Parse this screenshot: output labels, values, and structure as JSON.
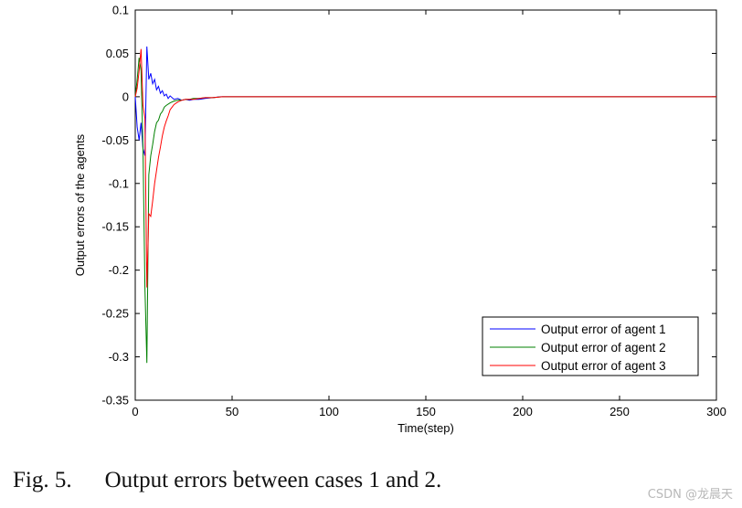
{
  "chart_data": {
    "type": "line",
    "title": "",
    "xlabel": "Time(step)",
    "ylabel": "Output errors of the agents",
    "xlim": [
      0,
      300
    ],
    "ylim": [
      -0.35,
      0.1
    ],
    "xticks": [
      0,
      50,
      100,
      150,
      200,
      250,
      300
    ],
    "yticks": [
      0.1,
      0.05,
      0,
      -0.05,
      -0.1,
      -0.15,
      -0.2,
      -0.25,
      -0.3,
      -0.35
    ],
    "xtick_labels": [
      "0",
      "50",
      "100",
      "150",
      "200",
      "250",
      "300"
    ],
    "ytick_labels": [
      "0.1",
      "0.05",
      "0",
      "-0.05",
      "-0.1",
      "-0.15",
      "-0.2",
      "-0.25",
      "-0.3",
      "-0.35"
    ],
    "grid": false,
    "legend_position": "bottom-right",
    "series": [
      {
        "name": "Output error of agent 1",
        "color": "#0000ff",
        "x": [
          0,
          1,
          2,
          3,
          4,
          5,
          6,
          7,
          8,
          9,
          10,
          11,
          12,
          13,
          14,
          15,
          16,
          17,
          18,
          20,
          22,
          24,
          26,
          28,
          30,
          33,
          36,
          40,
          44,
          47,
          50,
          300
        ],
        "y": [
          0,
          -0.035,
          -0.05,
          -0.03,
          -0.06,
          -0.068,
          0.058,
          0.02,
          0.027,
          0.015,
          0.02,
          0.008,
          0.012,
          0.004,
          0.007,
          0.001,
          0.003,
          -0.002,
          0.001,
          -0.003,
          -0.002,
          -0.004,
          -0.003,
          -0.004,
          -0.003,
          -0.003,
          -0.002,
          -0.001,
          0,
          0,
          0,
          0
        ]
      },
      {
        "name": "Output error of agent 2",
        "color": "#008000",
        "x": [
          0,
          1,
          2,
          3,
          4,
          5,
          6,
          7,
          8,
          9,
          10,
          11,
          12,
          13,
          14,
          15,
          16,
          18,
          20,
          22,
          24,
          26,
          28,
          30,
          33,
          36,
          40,
          45,
          50,
          300
        ],
        "y": [
          0,
          0.02,
          0.045,
          0.03,
          -0.06,
          -0.22,
          -0.307,
          -0.09,
          -0.068,
          -0.055,
          -0.04,
          -0.03,
          -0.027,
          -0.02,
          -0.017,
          -0.012,
          -0.01,
          -0.007,
          -0.005,
          -0.004,
          -0.004,
          -0.003,
          -0.003,
          -0.002,
          -0.002,
          -0.001,
          -0.001,
          0,
          0,
          0
        ]
      },
      {
        "name": "Output error of agent 3",
        "color": "#ff0000",
        "x": [
          0,
          1,
          2,
          3,
          4,
          5,
          6,
          7,
          8,
          9,
          10,
          11,
          12,
          13,
          14,
          15,
          16,
          17,
          18,
          19,
          20,
          22,
          24,
          26,
          28,
          30,
          33,
          36,
          40,
          45,
          50,
          300
        ],
        "y": [
          0,
          0.01,
          0.03,
          0.055,
          -0.01,
          -0.025,
          -0.22,
          -0.135,
          -0.138,
          -0.12,
          -0.1,
          -0.085,
          -0.07,
          -0.058,
          -0.045,
          -0.035,
          -0.028,
          -0.022,
          -0.015,
          -0.012,
          -0.009,
          -0.006,
          -0.004,
          -0.003,
          -0.003,
          -0.003,
          -0.002,
          -0.001,
          -0.001,
          0,
          0,
          0
        ]
      }
    ]
  },
  "caption": {
    "figure_label": "Fig. 5.",
    "text": "Output errors between cases 1 and 2."
  },
  "watermark": "CSDN @龙晨天"
}
